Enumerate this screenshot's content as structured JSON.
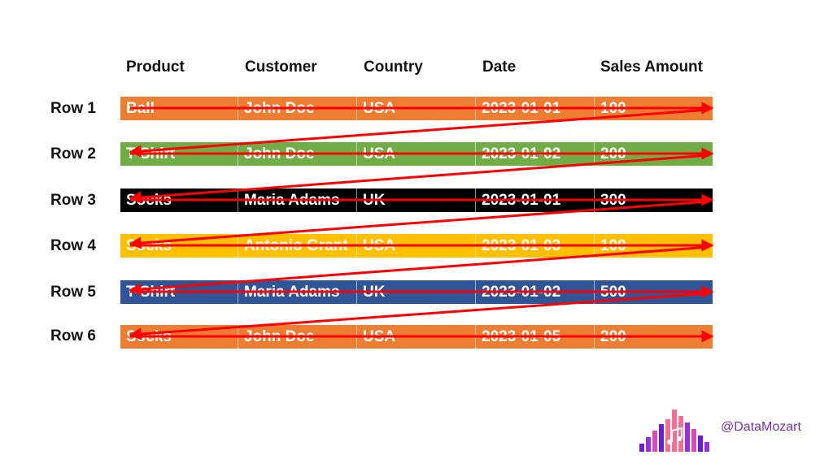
{
  "headers": [
    "Product",
    "Customer",
    "Country",
    "Date",
    "Sales Amount"
  ],
  "rows": [
    {
      "label": "Row 1",
      "color": "#ED7D31",
      "cells": [
        "Ball",
        "John Doe",
        "USA",
        "2023-01-01",
        "100"
      ]
    },
    {
      "label": "Row 2",
      "color": "#70AD47",
      "cells": [
        "T-Shirt",
        "John Doe",
        "USA",
        "2023-01-02",
        "200"
      ]
    },
    {
      "label": "Row 3",
      "color": "#000000",
      "cells": [
        "Socks",
        "Maria Adams",
        "UK",
        "2023-01-01",
        "300"
      ]
    },
    {
      "label": "Row 4",
      "color": "#FFC000",
      "cells": [
        "Socks",
        "Antonio Grant",
        "USA",
        "2023-01-03",
        "100"
      ]
    },
    {
      "label": "Row 5",
      "color": "#2F5597",
      "cells": [
        "T-Shirt",
        "Maria Adams",
        "UK",
        "2023-01-02",
        "500"
      ]
    },
    {
      "label": "Row 6",
      "color": "#ED7D31",
      "cells": [
        "Socks",
        "John Doe",
        "USA",
        "2023-01-05",
        "200"
      ]
    }
  ],
  "arrow_color": "#FF0000",
  "brand": {
    "handle": "@DataMozart",
    "text_color": "#7A2FA3",
    "logo_colors": [
      "#6A1FD1",
      "#9B2FD6",
      "#D64BB8",
      "#F06F92"
    ]
  }
}
